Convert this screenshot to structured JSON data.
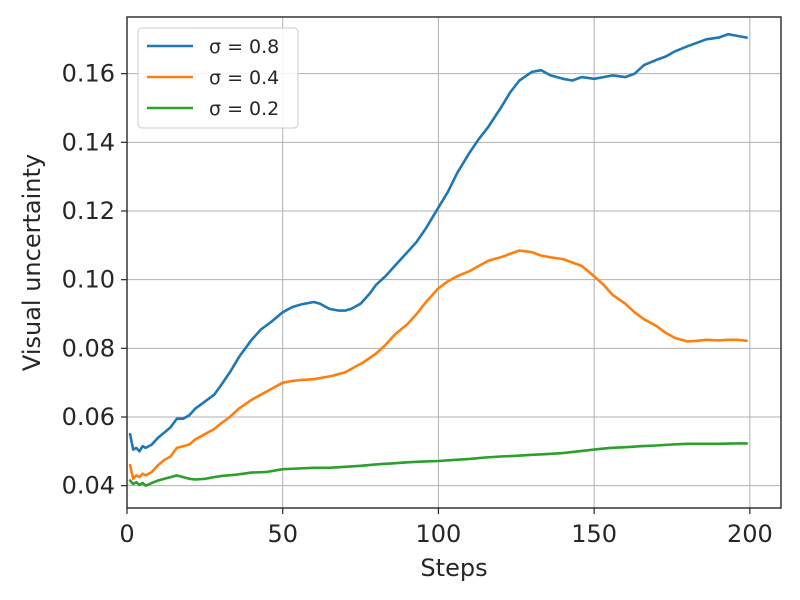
{
  "chart_data": {
    "type": "line",
    "title": "",
    "xlabel": "Steps",
    "ylabel": "Visual uncertainty",
    "xlim": [
      0,
      210
    ],
    "ylim": [
      0.0335,
      0.1765
    ],
    "xticks": [
      0,
      50,
      100,
      150,
      200
    ],
    "yticks": [
      0.04,
      0.06,
      0.08,
      0.1,
      0.12,
      0.14,
      0.16
    ],
    "xtick_labels": [
      "0",
      "50",
      "100",
      "150",
      "200"
    ],
    "ytick_labels": [
      "0.04",
      "0.06",
      "0.08",
      "0.10",
      "0.12",
      "0.14",
      "0.16"
    ],
    "grid": true,
    "legend_position": "top-left",
    "series": [
      {
        "name": "σ = 0.8",
        "color": "#1f77b4",
        "x": [
          1,
          2,
          3,
          4,
          5,
          6,
          8,
          10,
          12,
          14,
          16,
          18,
          20,
          22,
          25,
          28,
          30,
          33,
          36,
          40,
          43,
          46,
          50,
          53,
          56,
          60,
          62,
          65,
          68,
          70,
          72,
          75,
          78,
          80,
          83,
          86,
          90,
          93,
          96,
          100,
          103,
          106,
          110,
          113,
          116,
          120,
          123,
          126,
          130,
          133,
          136,
          140,
          143,
          146,
          150,
          153,
          156,
          160,
          163,
          166,
          170,
          173,
          176,
          180,
          183,
          186,
          190,
          193,
          196,
          199
        ],
        "values": [
          0.055,
          0.0505,
          0.051,
          0.05,
          0.0515,
          0.051,
          0.052,
          0.054,
          0.0555,
          0.057,
          0.0595,
          0.0595,
          0.0605,
          0.0625,
          0.0645,
          0.0665,
          0.069,
          0.073,
          0.0775,
          0.0825,
          0.0855,
          0.0875,
          0.0905,
          0.092,
          0.0928,
          0.0935,
          0.093,
          0.0915,
          0.091,
          0.091,
          0.0915,
          0.093,
          0.096,
          0.0985,
          0.101,
          0.104,
          0.108,
          0.111,
          0.115,
          0.121,
          0.1255,
          0.131,
          0.137,
          0.141,
          0.1445,
          0.15,
          0.1545,
          0.158,
          0.1605,
          0.161,
          0.1595,
          0.1585,
          0.158,
          0.159,
          0.1585,
          0.159,
          0.1595,
          0.159,
          0.16,
          0.1625,
          0.164,
          0.165,
          0.1665,
          0.168,
          0.169,
          0.17,
          0.1705,
          0.1715,
          0.171,
          0.1705
        ]
      },
      {
        "name": "σ = 0.4",
        "color": "#ff7f0e",
        "x": [
          1,
          2,
          3,
          4,
          5,
          6,
          8,
          10,
          12,
          14,
          16,
          18,
          20,
          22,
          25,
          28,
          30,
          33,
          36,
          40,
          43,
          46,
          50,
          53,
          56,
          60,
          63,
          66,
          70,
          73,
          76,
          80,
          83,
          86,
          90,
          93,
          96,
          100,
          103,
          106,
          110,
          113,
          116,
          120,
          123,
          126,
          130,
          133,
          136,
          140,
          143,
          146,
          150,
          153,
          156,
          160,
          163,
          166,
          170,
          173,
          176,
          180,
          183,
          186,
          190,
          193,
          196,
          199
        ],
        "values": [
          0.046,
          0.042,
          0.043,
          0.0425,
          0.0435,
          0.043,
          0.044,
          0.046,
          0.0475,
          0.0485,
          0.051,
          0.0515,
          0.052,
          0.0535,
          0.055,
          0.0565,
          0.058,
          0.06,
          0.0625,
          0.065,
          0.0665,
          0.068,
          0.07,
          0.0705,
          0.0708,
          0.071,
          0.0715,
          0.072,
          0.073,
          0.0745,
          0.076,
          0.0785,
          0.081,
          0.084,
          0.087,
          0.09,
          0.0935,
          0.0975,
          0.0995,
          0.101,
          0.1025,
          0.104,
          0.1055,
          0.1065,
          0.1075,
          0.1085,
          0.108,
          0.107,
          0.1065,
          0.106,
          0.105,
          0.104,
          0.101,
          0.0985,
          0.0955,
          0.093,
          0.0905,
          0.0885,
          0.0865,
          0.0845,
          0.083,
          0.082,
          0.0822,
          0.0825,
          0.0823,
          0.0825,
          0.0825,
          0.0822
        ]
      },
      {
        "name": "σ = 0.2",
        "color": "#2ca02c",
        "x": [
          1,
          2,
          3,
          4,
          5,
          6,
          8,
          10,
          12,
          14,
          16,
          18,
          20,
          22,
          25,
          28,
          30,
          35,
          40,
          45,
          50,
          55,
          60,
          65,
          70,
          75,
          80,
          85,
          90,
          95,
          100,
          105,
          110,
          115,
          120,
          125,
          130,
          135,
          140,
          145,
          150,
          155,
          160,
          165,
          170,
          175,
          180,
          185,
          190,
          195,
          199
        ],
        "values": [
          0.0415,
          0.0405,
          0.041,
          0.0402,
          0.0408,
          0.04,
          0.0408,
          0.0415,
          0.042,
          0.0425,
          0.043,
          0.0425,
          0.042,
          0.0418,
          0.042,
          0.0425,
          0.0428,
          0.0432,
          0.0438,
          0.044,
          0.0448,
          0.045,
          0.0452,
          0.0452,
          0.0455,
          0.0458,
          0.0462,
          0.0465,
          0.0468,
          0.047,
          0.0472,
          0.0475,
          0.0478,
          0.0482,
          0.0485,
          0.0487,
          0.049,
          0.0492,
          0.0495,
          0.05,
          0.0505,
          0.051,
          0.0512,
          0.0515,
          0.0517,
          0.052,
          0.0522,
          0.0522,
          0.0522,
          0.0523,
          0.0523
        ]
      }
    ]
  }
}
